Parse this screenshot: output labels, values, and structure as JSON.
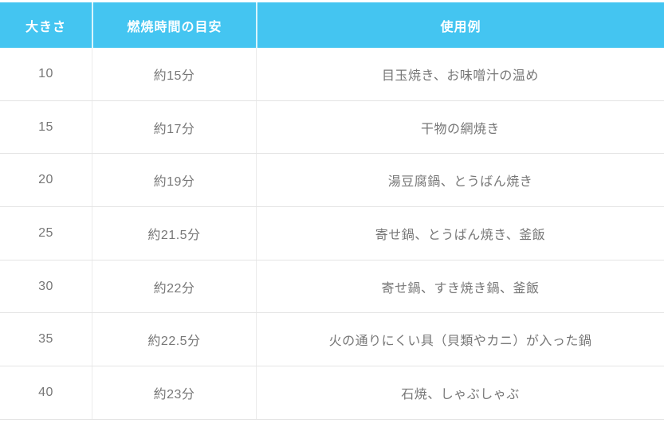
{
  "chart_data": {
    "type": "table",
    "columns": [
      "大きさ",
      "燃焼時間の目安",
      "使用例"
    ],
    "rows": [
      [
        "10",
        "約15分",
        "目玉焼き、お味噌汁の温め"
      ],
      [
        "15",
        "約17分",
        "干物の網焼き"
      ],
      [
        "20",
        "約19分",
        "湯豆腐鍋、とうばん焼き"
      ],
      [
        "25",
        "約21.5分",
        "寄せ鍋、とうばん焼き、釜飯"
      ],
      [
        "30",
        "約22分",
        "寄せ鍋、すき焼き鍋、釜飯"
      ],
      [
        "35",
        "約22.5分",
        "火の通りにくい具（貝類やカニ）が入った鍋"
      ],
      [
        "40",
        "約23分",
        "石焼、しゃぶしゃぶ"
      ]
    ]
  },
  "colors": {
    "header_bg": "#44c5f1",
    "header_text": "#ffffff",
    "body_bg": "#ffffff",
    "body_text": "#777777",
    "row_border": "#e4e4e4",
    "column_border": "#ebebeb"
  }
}
